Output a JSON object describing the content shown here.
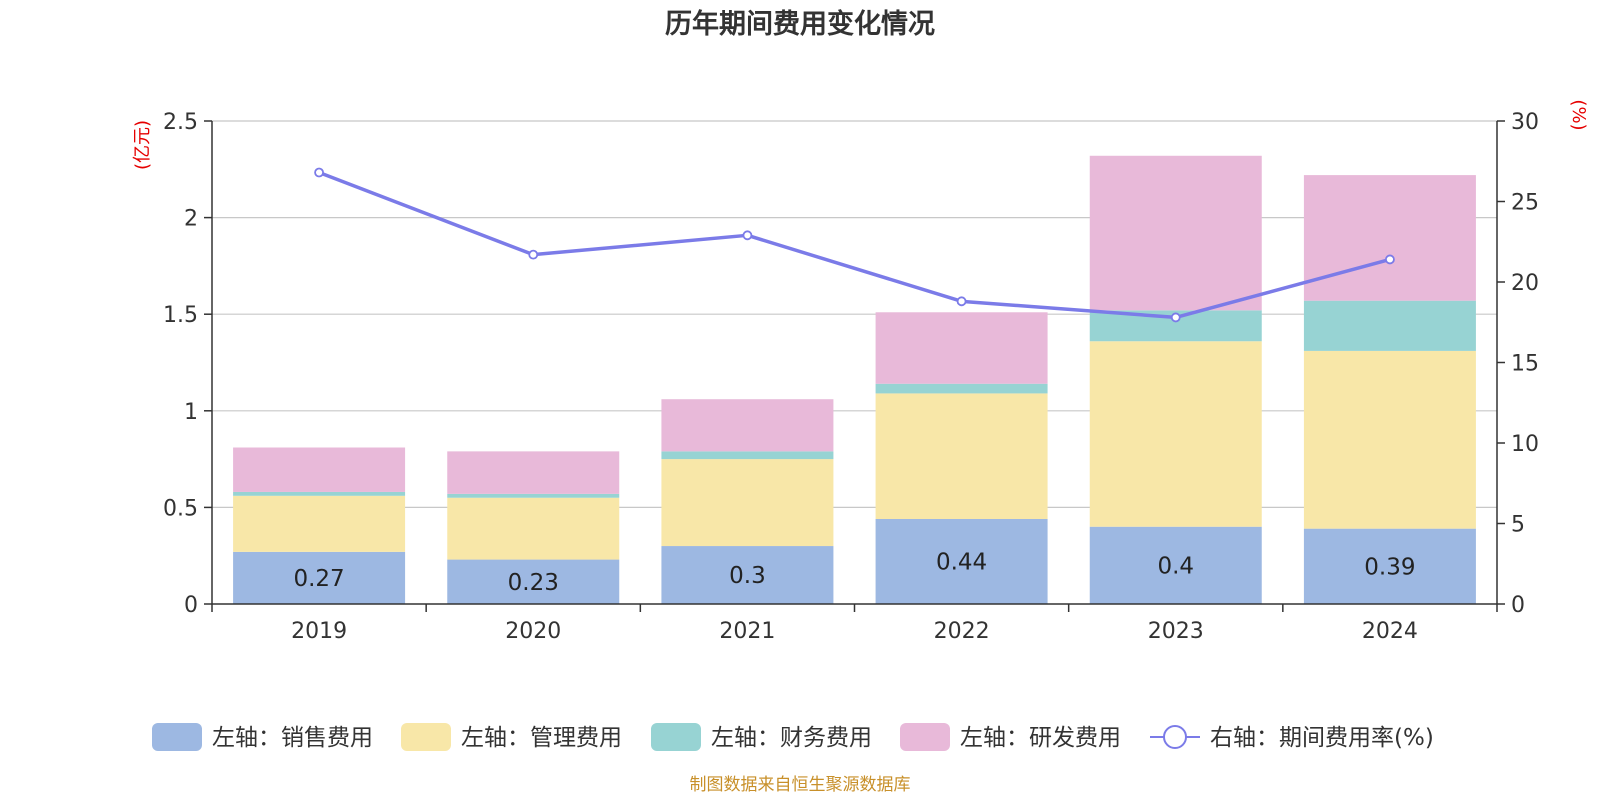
{
  "chart_data": {
    "type": "bar",
    "stacked": true,
    "title": "历年期间费用变化情况",
    "categories": [
      "2019",
      "2020",
      "2021",
      "2022",
      "2023",
      "2024"
    ],
    "left_axis": {
      "unit": "(亿元)",
      "ylim": [
        0,
        2.5
      ],
      "ticks": [
        "0",
        "0.5",
        "1",
        "1.5",
        "2",
        "2.5"
      ]
    },
    "right_axis": {
      "unit": "(%)",
      "ylim": [
        0,
        30
      ],
      "ticks": [
        "0",
        "5",
        "10",
        "15",
        "20",
        "25",
        "30"
      ]
    },
    "series": [
      {
        "name": "左轴：销售费用",
        "color": "#9db8e2",
        "values": [
          0.27,
          0.23,
          0.3,
          0.44,
          0.4,
          0.39
        ],
        "labels": [
          "0.27",
          "0.23",
          "0.3",
          "0.44",
          "0.4",
          "0.39"
        ]
      },
      {
        "name": "左轴：管理费用",
        "color": "#f8e7a8",
        "values": [
          0.29,
          0.32,
          0.45,
          0.65,
          0.96,
          0.92
        ]
      },
      {
        "name": "左轴：财务费用",
        "color": "#97d3d3",
        "values": [
          0.02,
          0.02,
          0.04,
          0.05,
          0.16,
          0.26
        ]
      },
      {
        "name": "左轴：研发费用",
        "color": "#e8b9d9",
        "values": [
          0.23,
          0.22,
          0.27,
          0.37,
          0.8,
          0.65
        ]
      }
    ],
    "line": {
      "name": "右轴：期间费用率(%)",
      "color": "#7b7be8",
      "values": [
        26.8,
        21.7,
        22.9,
        18.8,
        17.8,
        21.4
      ]
    },
    "grid": true,
    "legend_position": "bottom",
    "source": "制图数据来自恒生聚源数据库"
  }
}
